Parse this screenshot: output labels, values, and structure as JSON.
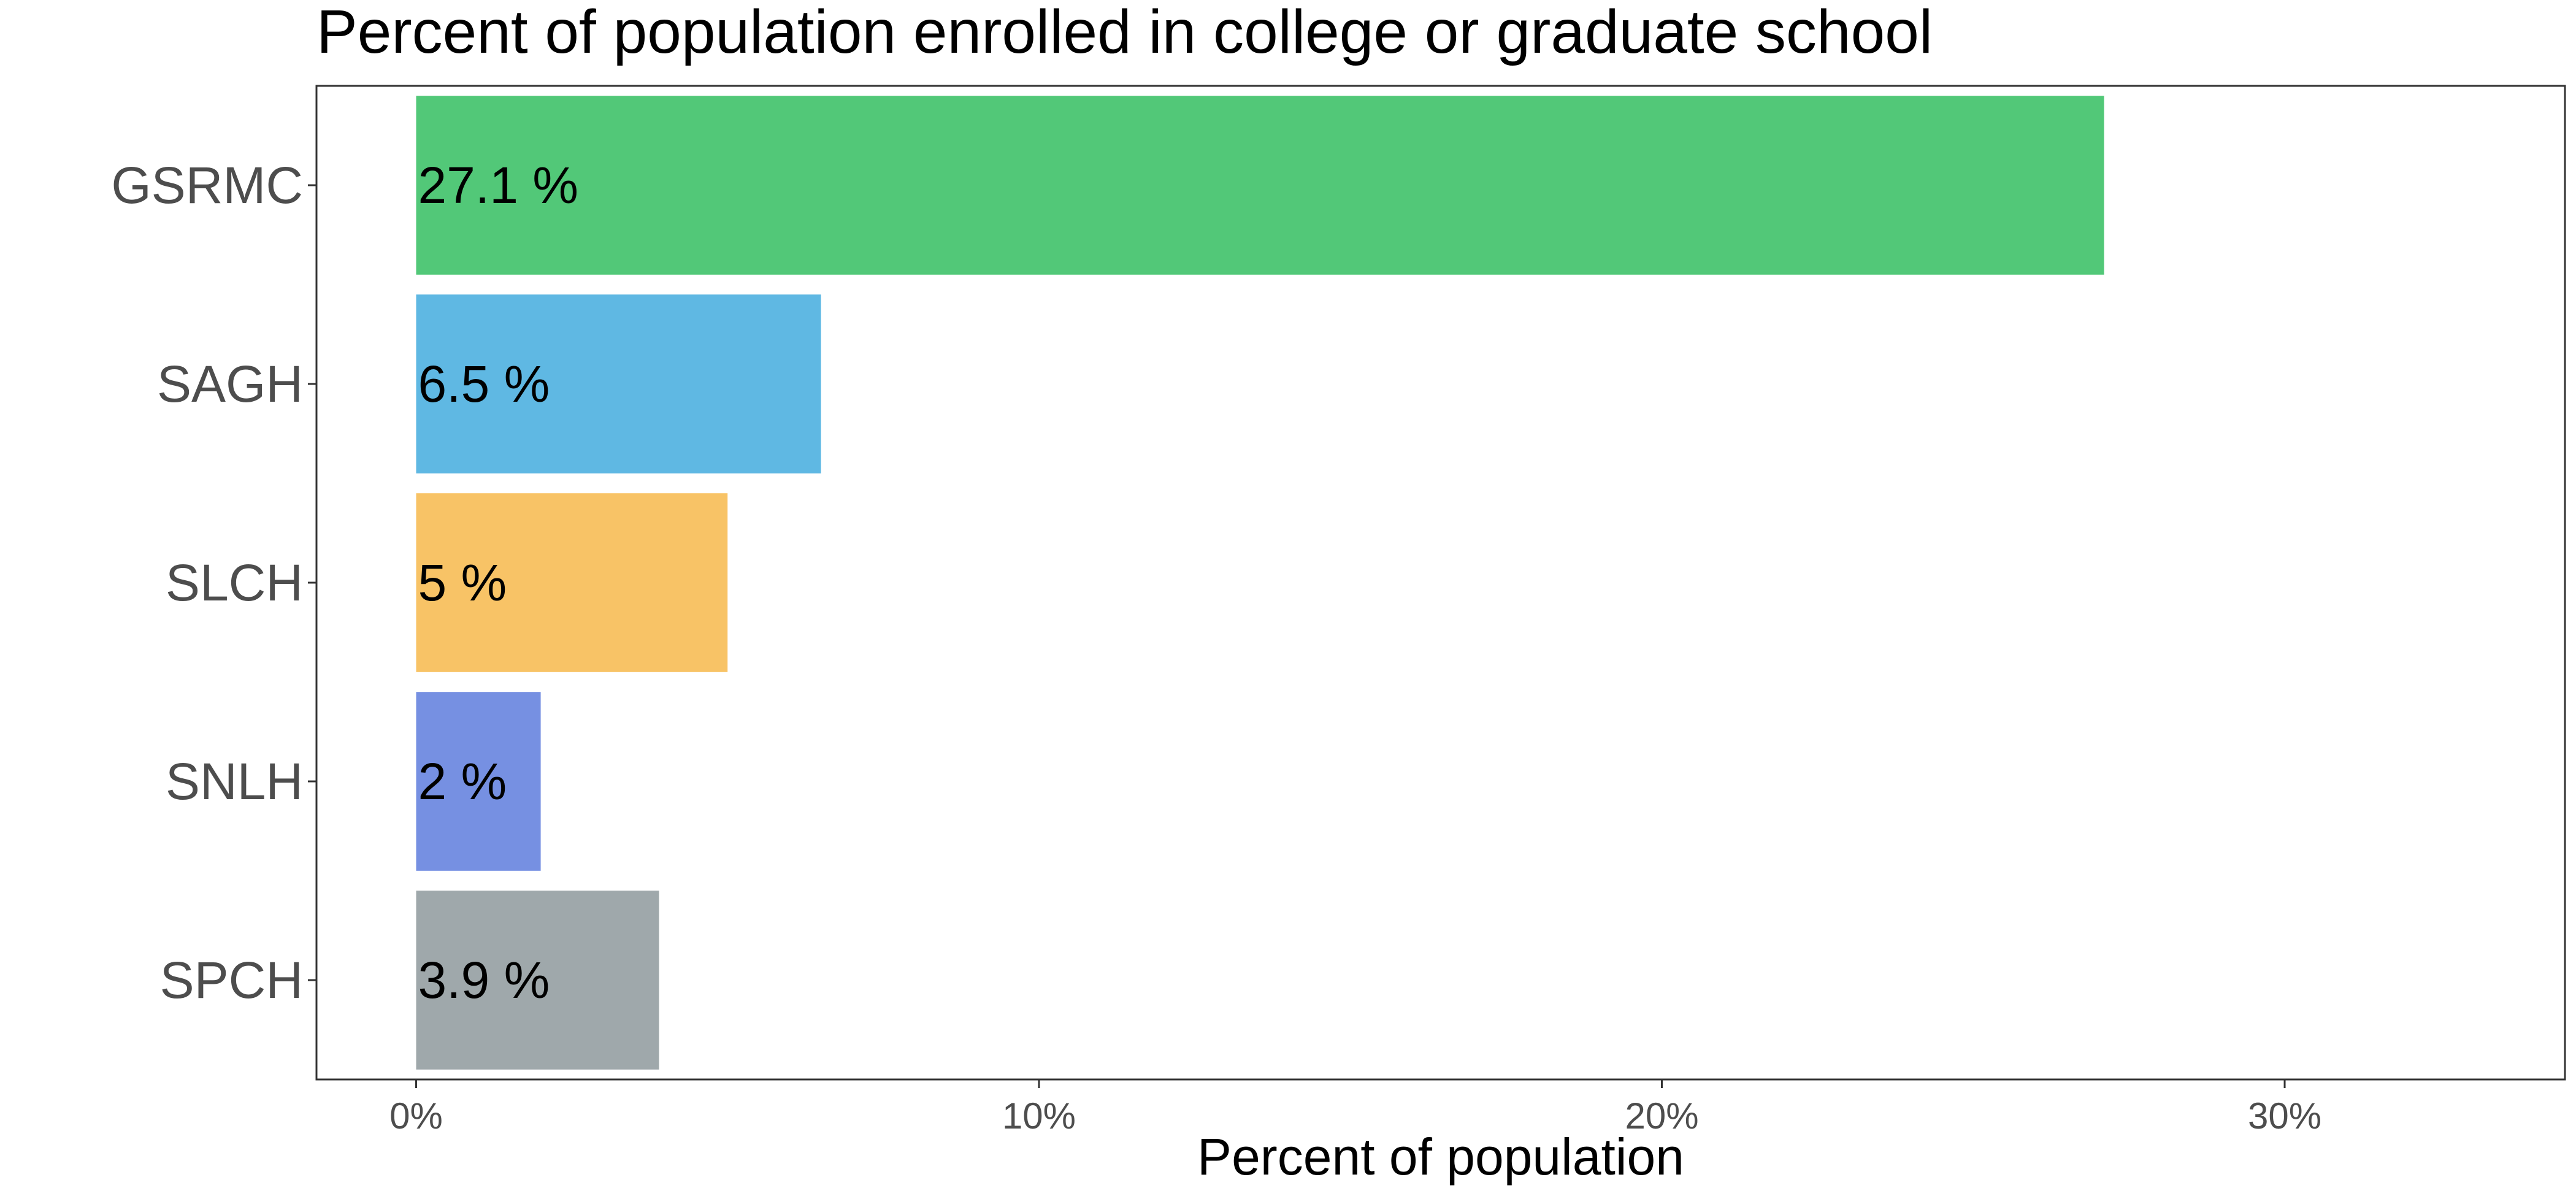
{
  "chart_data": {
    "type": "bar",
    "orientation": "horizontal",
    "title": "Percent of population enrolled in college or graduate school",
    "xlabel": "Percent of population",
    "ylabel": "",
    "categories": [
      "GSRMC",
      "SAGH",
      "SLCH",
      "SNLH",
      "SPCH"
    ],
    "values": [
      27.1,
      6.5,
      5,
      2,
      3.9
    ],
    "data_labels": [
      "27.1 %",
      "6.5 %",
      "5 %",
      "2 %",
      "3.9 %"
    ],
    "colors": [
      "#52c878",
      "#5fb8e3",
      "#f8c366",
      "#7690e2",
      "#9fa8ab"
    ],
    "xlim": [
      -1.6,
      34.5
    ],
    "x_ticks": [
      0,
      10,
      20,
      30
    ],
    "x_tick_labels": [
      "0%",
      "10%",
      "20%",
      "30%"
    ],
    "grid": false,
    "legend": "none"
  }
}
